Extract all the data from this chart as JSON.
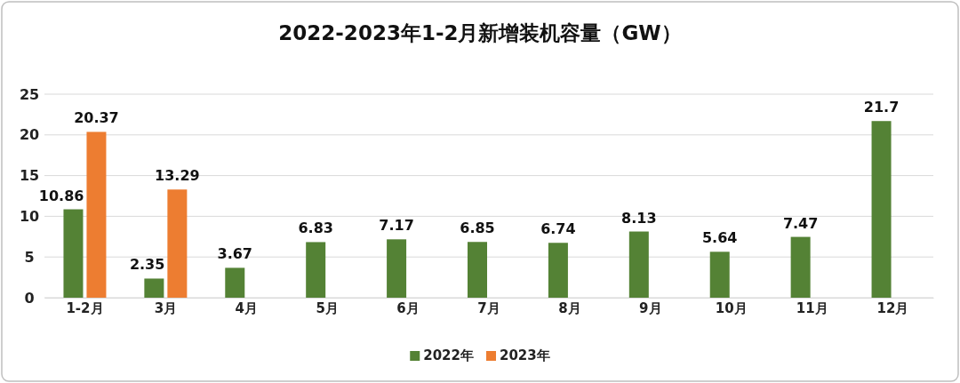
{
  "chart_data": {
    "type": "bar",
    "title": "2022-2023年1-2月新增装机容量（GW）",
    "categories": [
      "1-2月",
      "3月",
      "4月",
      "5月",
      "6月",
      "7月",
      "8月",
      "9月",
      "10月",
      "11月",
      "12月"
    ],
    "series": [
      {
        "name": "2022年",
        "color": "#548235",
        "values": [
          10.86,
          2.35,
          3.67,
          6.83,
          7.17,
          6.85,
          6.74,
          8.13,
          5.64,
          7.47,
          21.7
        ]
      },
      {
        "name": "2023年",
        "color": "#ed7d31",
        "values": [
          20.37,
          13.29,
          null,
          null,
          null,
          null,
          null,
          null,
          null,
          null,
          null
        ]
      }
    ],
    "ylim": [
      0,
      25
    ],
    "yticks": [
      0,
      5,
      10,
      15,
      20,
      25
    ],
    "grid": "y",
    "legend": "bottom",
    "data_labels": true
  }
}
